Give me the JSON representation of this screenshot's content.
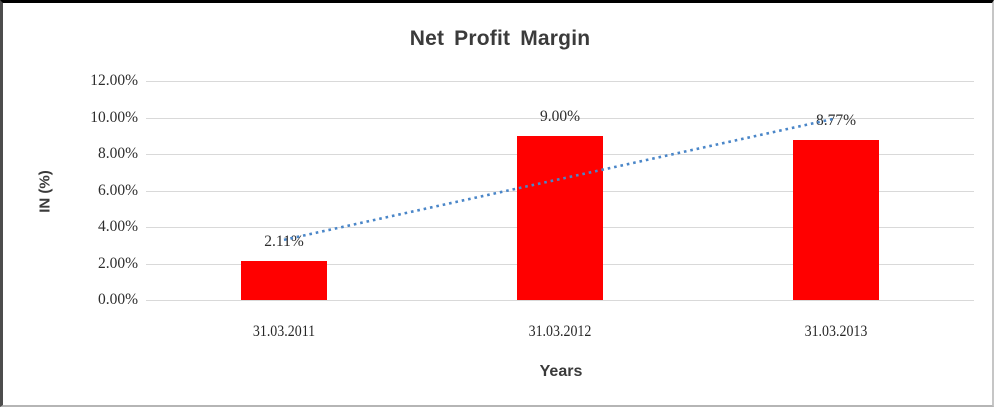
{
  "chart_data": {
    "type": "bar",
    "title": "Net Profit Margin",
    "categories": [
      "31.03.2011",
      "31.03.2012",
      "31.03.2013"
    ],
    "series": [
      {
        "name": "Net Profit Margin",
        "values": [
          2.11,
          9.0,
          8.77
        ]
      }
    ],
    "data_labels": [
      "2.11%",
      "9.00%",
      "8.77%"
    ],
    "xlabel": "Years",
    "ylabel": "IN (%)",
    "ylim": [
      0,
      12
    ],
    "yticks": [
      0,
      2,
      4,
      6,
      8,
      10,
      12
    ],
    "ytick_labels": [
      "0.00%",
      "2.00%",
      "4.00%",
      "6.00%",
      "8.00%",
      "10.00%",
      "12.00%"
    ],
    "grid": "horizontal",
    "legend": "none",
    "colors": {
      "bar": "#ff0000",
      "trendline": "#4a86c8",
      "gridline": "#d9d9d9",
      "text": "#3a3a3a"
    },
    "trendline": {
      "type": "linear",
      "style": "dotted"
    }
  }
}
